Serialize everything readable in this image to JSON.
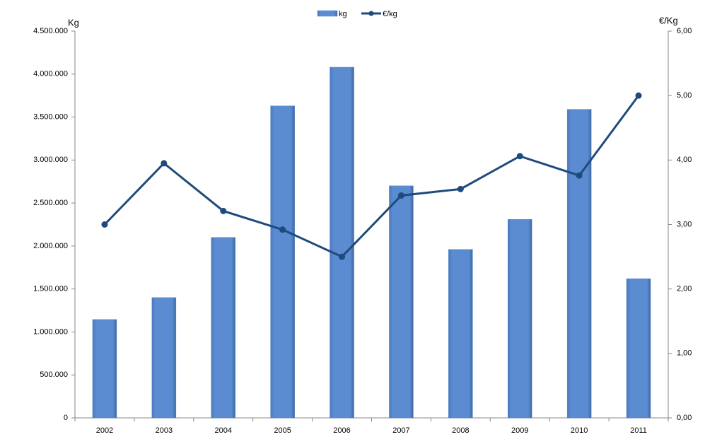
{
  "chart_data": {
    "type": "bar-line",
    "y_label": "Kg",
    "y2_label": "€/Kg",
    "categories": [
      "2002",
      "2003",
      "2004",
      "2005",
      "2006",
      "2007",
      "2008",
      "2009",
      "2010",
      "2011"
    ],
    "series": [
      {
        "name": "kg",
        "color": "#5b8bd0",
        "type": "bar",
        "values": [
          1145000,
          1400000,
          2100000,
          3630000,
          4080000,
          2700000,
          1960000,
          2310000,
          3590000,
          1620000
        ]
      },
      {
        "name": "€/kg",
        "color": "#1f4a7c",
        "type": "line",
        "axis": "y2",
        "values": [
          3.0,
          3.95,
          3.21,
          2.92,
          2.5,
          3.45,
          3.55,
          4.06,
          3.76,
          5.0
        ]
      }
    ],
    "ylim": [
      0,
      4500000
    ],
    "yticks": [
      0,
      {
        "value": 500000,
        "label": "500.000"
      },
      {
        "value": 1000000,
        "label": "1.000.000"
      },
      {
        "value": 1500000,
        "label": "1.500.000"
      },
      {
        "value": 2000000,
        "label": "2.000.000"
      },
      {
        "value": 2500000,
        "label": "2.500.000"
      },
      {
        "value": 3000000,
        "label": "3.000.000"
      },
      {
        "value": 3500000,
        "label": "3.500.000"
      },
      {
        "value": 4000000,
        "label": "4.000.000"
      },
      {
        "value": 4500000,
        "label": "4.500.000"
      }
    ],
    "y2lim": [
      0,
      6
    ],
    "y2ticks": [
      {
        "value": 0,
        "label": "0,00"
      },
      {
        "value": 1,
        "label": "1,00"
      },
      {
        "value": 2,
        "label": "2,00"
      },
      {
        "value": 3,
        "label": "3,00"
      },
      {
        "value": 4,
        "label": "4,00"
      },
      {
        "value": 5,
        "label": "5,00"
      },
      {
        "value": 6,
        "label": "6,00"
      }
    ],
    "legend": "top",
    "grid": false
  }
}
